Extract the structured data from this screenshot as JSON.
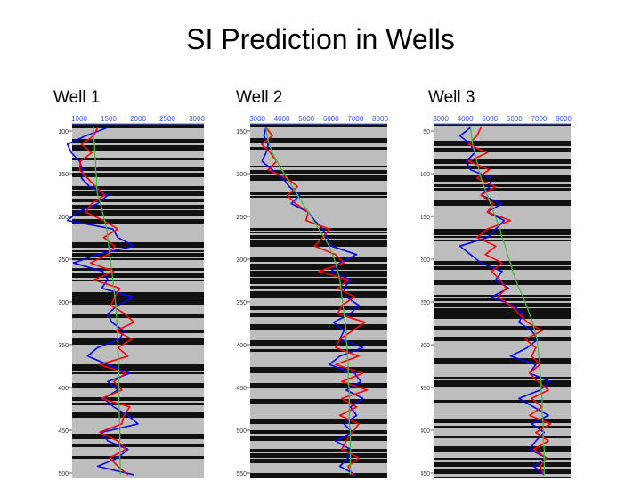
{
  "title": "SI Prediction in Wells",
  "wells": [
    {
      "label": "Well 1"
    },
    {
      "label": "Well 2"
    },
    {
      "label": "Well 3"
    }
  ],
  "chart_data": [
    {
      "type": "line",
      "label": "Well 1",
      "x_ticks": [
        "1000",
        "1500",
        "2000",
        "2500",
        "3000"
      ],
      "depth_ticks": [
        "100",
        "150",
        "200",
        "250",
        "300",
        "350",
        "400",
        "450",
        "500"
      ],
      "depth_range": [
        100,
        500
      ],
      "series": [
        {
          "color": "#0000ff",
          "values": [
            3,
            0.8,
            -1,
            -0.6,
            0.2,
            0.5,
            0.4,
            1.2,
            3,
            2,
            0,
            -1,
            3.5,
            4,
            5.6,
            2,
            -0.4,
            2.5,
            3,
            2.4,
            5.5,
            4,
            3,
            3.4,
            4.6,
            4.2,
            2,
            1,
            3,
            5.2,
            3,
            4,
            2.6,
            3.6,
            5,
            6,
            2.4,
            3,
            5,
            4,
            2,
            5.6
          ]
        },
        {
          "color": "#ff0000",
          "values": [
            2,
            1.6,
            0.4,
            1.4,
            0.3,
            0.2,
            1,
            1.8,
            2.7,
            1.4,
            0.8,
            2.6,
            4,
            2.6,
            3.7,
            3,
            1.3,
            3.6,
            1.6,
            4.2,
            3.7,
            3.3,
            4.7,
            5.6,
            3.8,
            5.4,
            4,
            5,
            2.2,
            4.8,
            3.6,
            4.4,
            2.4,
            5.2,
            4.6,
            4.4,
            2.2,
            4,
            4.8,
            3.2,
            4,
            5
          ]
        },
        {
          "color": "#44bb44",
          "values": [
            1.6,
            1.6,
            1.7,
            1.7,
            1.8,
            1.8,
            1.9,
            1.9,
            2,
            2.3,
            2.5,
            2.7,
            2.9,
            3,
            3.1,
            3.2,
            3.3,
            3.4,
            3.5,
            3.6,
            3.7,
            3.8,
            3.85,
            3.9,
            3.95,
            4,
            4,
            4.05,
            4.05,
            4.1,
            4.1,
            4.1,
            4.1,
            4.15,
            4.15,
            4.2,
            4.2,
            4.2,
            4.2,
            4.2,
            4.25,
            4.25
          ]
        }
      ]
    },
    {
      "type": "line",
      "label": "Well 2",
      "x_ticks": [
        "3000",
        "4000",
        "5000",
        "6000",
        "7000",
        "8000"
      ],
      "depth_ticks": [
        "150",
        "200",
        "250",
        "300",
        "350",
        "400",
        "450",
        "500",
        "550"
      ],
      "depth_range": [
        150,
        600
      ],
      "series": [
        {
          "color": "#0000ff",
          "values": [
            1,
            0.8,
            1.2,
            1,
            0.6,
            1.6,
            2.6,
            3.2,
            4.2,
            3.4,
            5,
            5.6,
            6.4,
            6.8,
            7.2,
            9.6,
            8,
            7.2,
            9,
            8.4,
            8.6,
            9.8,
            9,
            7.4,
            8.4,
            8,
            10.2,
            8,
            7,
            9.4,
            10,
            8.6,
            10.2,
            9,
            9.6,
            8.4,
            9.2,
            7.6,
            9,
            8.8,
            8,
            9.5
          ]
        },
        {
          "color": "#ff0000",
          "values": [
            1,
            1.6,
            0.6,
            1.4,
            2,
            1.2,
            3,
            4,
            3,
            3.8,
            5,
            4.8,
            7,
            6.4,
            5.6,
            7.6,
            8.4,
            6,
            8.8,
            7.8,
            9.4,
            8.2,
            7.8,
            10.4,
            9.2,
            8,
            7.6,
            9.8,
            7.6,
            10.2,
            8.2,
            10.6,
            8.2,
            9.6,
            8,
            9.8,
            9.2,
            8.6,
            8.2,
            9.8,
            8.8,
            9.2
          ]
        },
        {
          "color": "#44bb44",
          "values": [
            1,
            1.1,
            1.3,
            1.6,
            2,
            2.5,
            3,
            3.5,
            4,
            4.5,
            5,
            5.5,
            6,
            6.5,
            7,
            7.3,
            7.6,
            7.8,
            8,
            8.1,
            8.2,
            8.3,
            8.4,
            8.5,
            8.6,
            8.6,
            8.7,
            8.7,
            8.8,
            8.8,
            8.8,
            8.9,
            8.9,
            8.9,
            8.9,
            8.9,
            9,
            9,
            9,
            9,
            9,
            9
          ]
        }
      ]
    },
    {
      "type": "line",
      "label": "Well 3",
      "x_ticks": [
        "3000",
        "4000",
        "5000",
        "6000",
        "7000",
        "8000"
      ],
      "depth_ticks": [
        "50",
        "100",
        "150",
        "200",
        "250",
        "300",
        "350",
        "400",
        "450"
      ],
      "depth_range": [
        50,
        500
      ],
      "series": [
        {
          "color": "#0000ff",
          "values": [
            3,
            2,
            3,
            3.4,
            2.6,
            3,
            5,
            4.8,
            4,
            6,
            4.6,
            6.2,
            5.4,
            4.6,
            2,
            3,
            4,
            6,
            5.4,
            6.6,
            5,
            7,
            8,
            7.6,
            8.8,
            9.4,
            8.4,
            6.8,
            9.2,
            8.6,
            10.6,
            9.6,
            7.6,
            9,
            10.4,
            8.8,
            10,
            9.2,
            8.6,
            10.2,
            9,
            10
          ]
        },
        {
          "color": "#ff0000",
          "values": [
            4,
            3.6,
            2.8,
            4.6,
            2.8,
            4.8,
            3.6,
            5.4,
            4,
            5.2,
            4.6,
            6.8,
            4.6,
            3.6,
            5.4,
            4.4,
            6,
            5,
            5.8,
            6.4,
            5.6,
            6.8,
            7.6,
            8.4,
            9.8,
            8.2,
            9.2,
            8.8,
            9.6,
            8.6,
            9.4,
            10.4,
            8.8,
            9.8,
            8.6,
            10.6,
            9.2,
            10.4,
            9,
            10.2,
            9.6,
            10
          ]
        },
        {
          "color": "#44bb44",
          "values": [
            3,
            3.1,
            3.2,
            3.4,
            3.6,
            3.8,
            4,
            4.3,
            4.6,
            4.9,
            5.2,
            5.5,
            5.8,
            6,
            6.3,
            6.5,
            6.8,
            7,
            7.3,
            7.6,
            8,
            8.3,
            8.6,
            8.9,
            9.1,
            9.3,
            9.4,
            9.5,
            9.6,
            9.6,
            9.7,
            9.7,
            9.8,
            9.8,
            9.8,
            9.9,
            9.9,
            9.9,
            10,
            10,
            10,
            10
          ]
        }
      ]
    }
  ]
}
